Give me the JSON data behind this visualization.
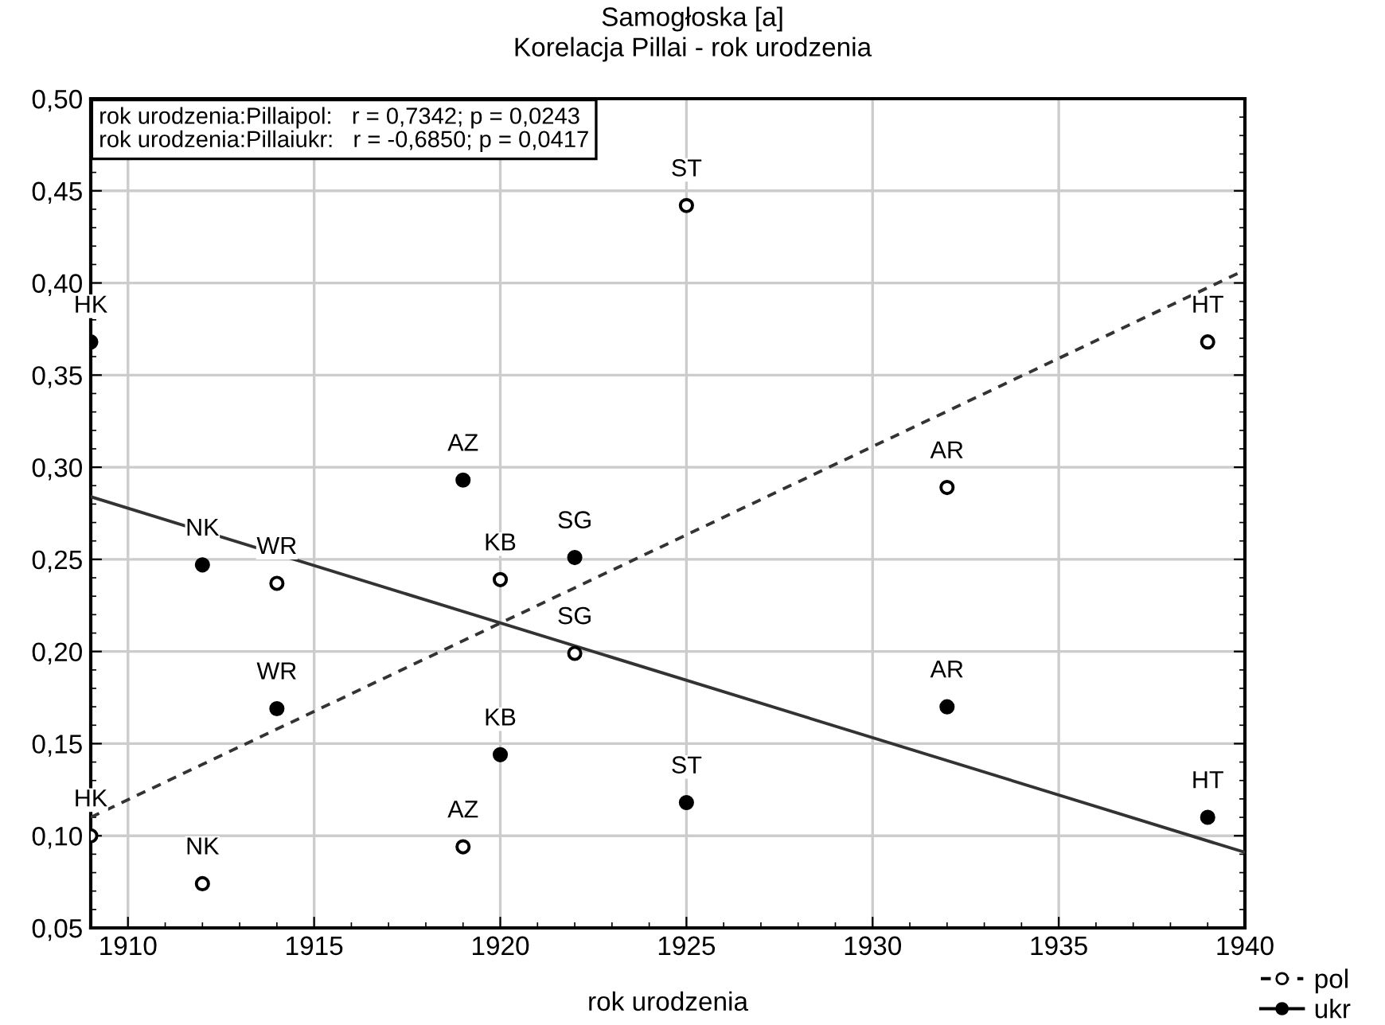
{
  "chart_data": {
    "type": "scatter",
    "title": "Samogłoska [a]",
    "subtitle": "Korelacja Pillai - rok urodzenia",
    "xlabel": "rok urodzenia",
    "xlim": [
      1909,
      1940
    ],
    "xticks": [
      1910,
      1915,
      1920,
      1925,
      1930,
      1935,
      1940
    ],
    "ylim": [
      0.05,
      0.5
    ],
    "yticks": [
      {
        "value": 0.05,
        "label": "0,05"
      },
      {
        "value": 0.1,
        "label": "0,10"
      },
      {
        "value": 0.15,
        "label": "0,15"
      },
      {
        "value": 0.2,
        "label": "0,20"
      },
      {
        "value": 0.25,
        "label": "0,25"
      },
      {
        "value": 0.3,
        "label": "0,30"
      },
      {
        "value": 0.35,
        "label": "0,35"
      },
      {
        "value": 0.4,
        "label": "0,40"
      },
      {
        "value": 0.45,
        "label": "0,45"
      },
      {
        "value": 0.5,
        "label": "0,50"
      }
    ],
    "grid": true,
    "legend": "bottom right",
    "series": [
      {
        "name": "pol",
        "marker": "circle",
        "color": "#ffffff",
        "x": [
          1909,
          1912,
          1914,
          1919,
          1920,
          1922,
          1925,
          1932,
          1939
        ],
        "values": [
          0.1,
          0.074,
          0.237,
          0.094,
          0.239,
          0.199,
          0.442,
          0.289,
          0.368
        ]
      },
      {
        "name": "ukr",
        "marker": "circle",
        "color": "#000000",
        "x": [
          1909,
          1912,
          1914,
          1919,
          1920,
          1922,
          1925,
          1932,
          1939
        ],
        "values": [
          0.368,
          0.247,
          0.169,
          0.293,
          0.144,
          0.251,
          0.118,
          0.17,
          0.11
        ]
      },
      {
        "type": "line",
        "color": "#333333",
        "line_style": "dashed",
        "x": [
          1909,
          1940
        ],
        "values": [
          0.11,
          0.407
        ]
      },
      {
        "type": "line",
        "color": "#333333",
        "line_style": "solid",
        "x": [
          1909,
          1940
        ],
        "values": [
          0.284,
          0.091
        ]
      }
    ],
    "annotations": [
      "rok urodzenia:Pillaipol:   r = 0,7342; p = 0,0243",
      "rok urodzenia:Pillaiukr:   r = -0,6850; p = 0,0417",
      {
        "text": "HK",
        "x": 1909,
        "y": 0.1
      },
      {
        "text": "NK",
        "x": 1912,
        "y": 0.074
      },
      {
        "text": "WR",
        "x": 1914,
        "y": 0.237
      },
      {
        "text": "AZ",
        "x": 1919,
        "y": 0.094
      },
      {
        "text": "KB",
        "x": 1920,
        "y": 0.239
      },
      {
        "text": "SG",
        "x": 1922,
        "y": 0.199
      },
      {
        "text": "ST",
        "x": 1925,
        "y": 0.442
      },
      {
        "text": "AR",
        "x": 1932,
        "y": 0.289
      },
      {
        "text": "HT",
        "x": 1939,
        "y": 0.368
      },
      {
        "text": "HK",
        "x": 1909,
        "y": 0.368
      },
      {
        "text": "NK",
        "x": 1912,
        "y": 0.247
      },
      {
        "text": "WR",
        "x": 1914,
        "y": 0.169
      },
      {
        "text": "AZ",
        "x": 1919,
        "y": 0.293
      },
      {
        "text": "KB",
        "x": 1920,
        "y": 0.144
      },
      {
        "text": "SG",
        "x": 1922,
        "y": 0.251
      },
      {
        "text": "ST",
        "x": 1925,
        "y": 0.118
      },
      {
        "text": "AR",
        "x": 1932,
        "y": 0.17
      },
      {
        "text": "HT",
        "x": 1939,
        "y": 0.11
      }
    ]
  }
}
